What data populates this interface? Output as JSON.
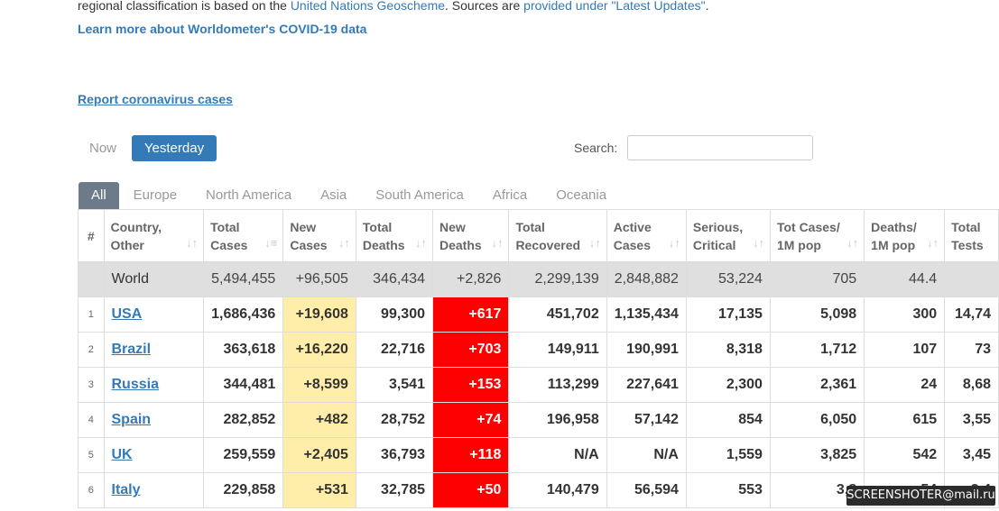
{
  "intro": {
    "text_before": "regional classification is based on the ",
    "link1": "United Nations Geoscheme",
    "text_mid": ". Sources are ",
    "link2": "provided under \"Latest Updates\"",
    "text_end": "."
  },
  "learn_more": "Learn more about Worldometer's COVID-19 data",
  "report_link": "Report coronavirus cases",
  "day_tabs": {
    "now": "Now",
    "yesterday": "Yesterday"
  },
  "search": {
    "label": "Search:",
    "value": ""
  },
  "region_tabs": [
    "All",
    "Europe",
    "North America",
    "Asia",
    "South America",
    "Africa",
    "Oceania"
  ],
  "table": {
    "headers": [
      {
        "line1": "#",
        "line2": ""
      },
      {
        "line1": "Country,",
        "line2": "Other"
      },
      {
        "line1": "Total",
        "line2": "Cases"
      },
      {
        "line1": "New",
        "line2": "Cases"
      },
      {
        "line1": "Total",
        "line2": "Deaths"
      },
      {
        "line1": "New",
        "line2": "Deaths"
      },
      {
        "line1": "Total",
        "line2": "Recovered"
      },
      {
        "line1": "Active",
        "line2": "Cases"
      },
      {
        "line1": "Serious,",
        "line2": "Critical"
      },
      {
        "line1": "Tot Cases/",
        "line2": "1M pop"
      },
      {
        "line1": "Deaths/",
        "line2": "1M pop"
      },
      {
        "line1": "Total",
        "line2": "Tests"
      }
    ],
    "world": [
      "",
      "World",
      "5,494,455",
      "+96,505",
      "346,434",
      "+2,826",
      "2,299,139",
      "2,848,882",
      "53,224",
      "705",
      "44.4",
      ""
    ],
    "rows": [
      [
        "1",
        "USA",
        "1,686,436",
        "+19,608",
        "99,300",
        "+617",
        "451,702",
        "1,135,434",
        "17,135",
        "5,098",
        "300",
        "14,74"
      ],
      [
        "2",
        "Brazil",
        "363,618",
        "+16,220",
        "22,716",
        "+703",
        "149,911",
        "190,991",
        "8,318",
        "1,712",
        "107",
        "73"
      ],
      [
        "3",
        "Russia",
        "344,481",
        "+8,599",
        "3,541",
        "+153",
        "113,299",
        "227,641",
        "2,300",
        "2,361",
        "24",
        "8,68"
      ],
      [
        "4",
        "Spain",
        "282,852",
        "+482",
        "28,752",
        "+74",
        "196,958",
        "57,142",
        "854",
        "6,050",
        "615",
        "3,55"
      ],
      [
        "5",
        "UK",
        "259,559",
        "+2,405",
        "36,793",
        "+118",
        "N/A",
        "N/A",
        "1,559",
        "3,825",
        "542",
        "3,45"
      ],
      [
        "6",
        "Italy",
        "229,858",
        "+531",
        "32,785",
        "+50",
        "140,479",
        "56,594",
        "553",
        "3,8",
        "54",
        "3,4"
      ]
    ]
  },
  "watermark": "SCREENSHOTER@mail.ru"
}
